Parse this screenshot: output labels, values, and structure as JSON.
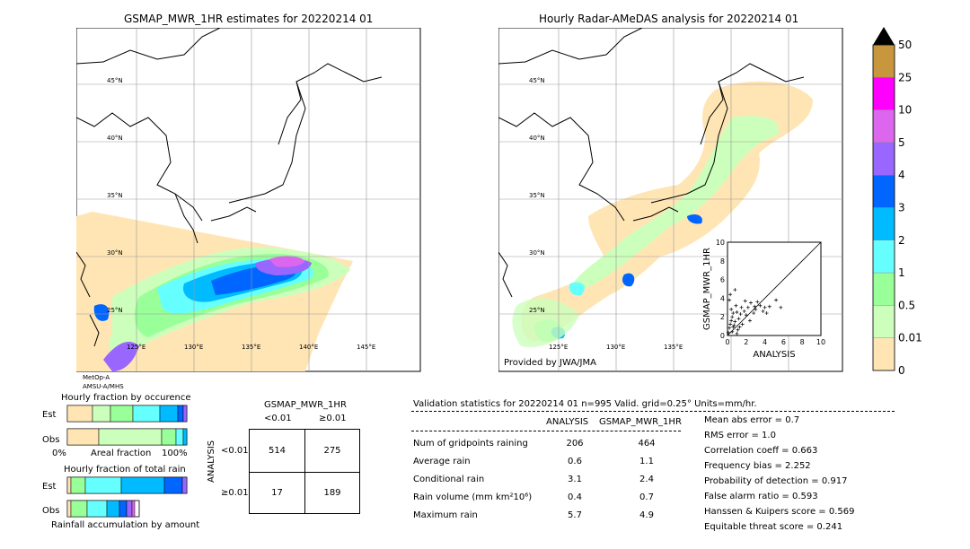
{
  "left_map": {
    "title": "GSMAP_MWR_1HR estimates for 20220214 01",
    "lat_labels": [
      "45°N",
      "40°N",
      "35°N",
      "30°N",
      "25°N"
    ],
    "lon_labels": [
      "125°E",
      "130°E",
      "135°E",
      "140°E",
      "145°E"
    ],
    "satellite": "MetOp-A",
    "sensor": "AMSU-A/MHS"
  },
  "right_map": {
    "title": "Hourly Radar-AMeDAS analysis for 20220214 01",
    "lat_labels": [
      "45°N",
      "40°N",
      "35°N",
      "30°N",
      "25°N"
    ],
    "lon_labels": [
      "125°E",
      "130°E",
      "135°E"
    ],
    "credit": "Provided by JWA/JMA"
  },
  "colorbar": {
    "levels": [
      "50",
      "25",
      "10",
      "5",
      "4",
      "3",
      "2",
      "1",
      "0.5",
      "0.01",
      "0"
    ],
    "colors": [
      "#c8963c",
      "#ff00ff",
      "#dd66ee",
      "#9966ff",
      "#0066ff",
      "#00bbff",
      "#66ffff",
      "#99ff99",
      "#ccffbb",
      "#ffe5b4"
    ]
  },
  "chart_data": [
    {
      "type": "scatter",
      "xlabel": "ANALYSIS",
      "ylabel": "GSMAP_MWR_1HR",
      "xlim": [
        0,
        10
      ],
      "ylim": [
        0,
        10
      ],
      "ticks": [
        "0",
        "2",
        "4",
        "6",
        "8",
        "10"
      ],
      "reference_line": "y = x",
      "points": [
        [
          0.3,
          1.2
        ],
        [
          0.5,
          2.0
        ],
        [
          0.8,
          1.5
        ],
        [
          1.0,
          2.5
        ],
        [
          1.2,
          1.8
        ],
        [
          1.5,
          3.0
        ],
        [
          0.6,
          0.9
        ],
        [
          2.0,
          2.2
        ],
        [
          2.5,
          3.5
        ],
        [
          3.0,
          2.8
        ],
        [
          3.5,
          3.2
        ],
        [
          4.0,
          3.0
        ],
        [
          0.2,
          3.8
        ],
        [
          0.4,
          2.8
        ],
        [
          1.8,
          2.6
        ],
        [
          2.2,
          3.0
        ],
        [
          0.9,
          3.2
        ],
        [
          1.4,
          2.3
        ],
        [
          3.2,
          3.6
        ],
        [
          4.5,
          3.1
        ],
        [
          5.2,
          3.8
        ],
        [
          5.7,
          3.0
        ],
        [
          0.1,
          0.3
        ],
        [
          0.2,
          0.8
        ],
        [
          0.5,
          0.4
        ],
        [
          0.7,
          1.1
        ],
        [
          1.1,
          0.6
        ],
        [
          1.6,
          1.2
        ],
        [
          0.3,
          4.4
        ],
        [
          0.8,
          4.9
        ],
        [
          2.8,
          2.4
        ],
        [
          3.8,
          2.6
        ],
        [
          1.0,
          0.2
        ],
        [
          1.3,
          0.9
        ],
        [
          0.4,
          1.6
        ],
        [
          0.6,
          2.4
        ],
        [
          2.4,
          1.6
        ],
        [
          2.9,
          3.1
        ],
        [
          4.2,
          2.4
        ],
        [
          1.9,
          3.7
        ]
      ]
    },
    {
      "type": "bar",
      "title": "Hourly fraction by occurence",
      "categories": [
        "Est",
        "Obs"
      ],
      "xtick_labels": [
        "0%",
        "100%"
      ],
      "xlabel": "Areal fraction"
    },
    {
      "type": "bar",
      "title": "Hourly fraction of total rain",
      "categories": [
        "Est",
        "Obs"
      ],
      "xlabel": "Rainfall accumulation by amount"
    },
    {
      "type": "table",
      "title": "GSMAP_MWR_1HR",
      "col_headers": [
        "<0.01",
        "≥0.01"
      ],
      "row_label": "ANALYSIS",
      "row_headers": [
        "<0.01",
        "≥0.01"
      ],
      "cells": [
        [
          "514",
          "275"
        ],
        [
          "17",
          "189"
        ]
      ]
    }
  ],
  "validation": {
    "header": "Validation statistics for 20220214 01  n=995 Valid. grid=0.25° Units=mm/hr.",
    "col_analysis": "ANALYSIS",
    "col_gsmap": "GSMAP_MWR_1HR",
    "rows": [
      {
        "label": "Num of gridpoints raining",
        "analysis": "206",
        "gsmap": "464"
      },
      {
        "label": "Average rain",
        "analysis": "0.6",
        "gsmap": "1.1"
      },
      {
        "label": "Conditional rain",
        "analysis": "3.1",
        "gsmap": "2.4"
      },
      {
        "label": "Rain volume (mm km²10⁶)",
        "analysis": "0.4",
        "gsmap": "0.7"
      },
      {
        "label": "Maximum rain",
        "analysis": "5.7",
        "gsmap": "4.9"
      }
    ],
    "scores": [
      "Mean abs error =    0.7",
      "RMS error =    1.0",
      "Correlation coeff =  0.663",
      "Frequency bias =  2.252",
      "Probability of detection =  0.917",
      "False alarm ratio =  0.593",
      "Hanssen & Kuipers score =  0.569",
      "Equitable threat score =  0.241"
    ]
  }
}
